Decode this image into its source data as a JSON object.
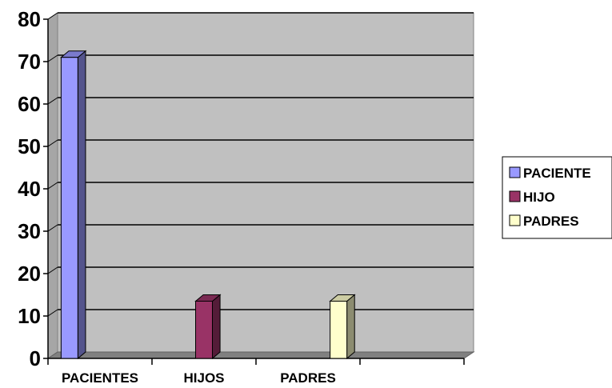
{
  "chart_data": {
    "type": "bar",
    "style": "3d-clustered",
    "categories": [
      "PACIENTES",
      "HIJOS",
      "PADRES"
    ],
    "series": [
      {
        "name": "PACIENTE",
        "color": "#9999ff",
        "values": [
          71,
          0,
          0
        ]
      },
      {
        "name": "HIJO",
        "color": "#993366",
        "values": [
          0,
          13.5,
          0
        ]
      },
      {
        "name": "PADRES",
        "color": "#ffffcc",
        "values": [
          0,
          0,
          13.5
        ]
      }
    ],
    "ylim": [
      0,
      80
    ],
    "yticks": [
      "0",
      "10",
      "20",
      "30",
      "40",
      "50",
      "60",
      "70",
      "80"
    ],
    "title": "",
    "xlabel": "",
    "ylabel": "",
    "grid": true,
    "plot_background": "#c0c0c0",
    "legend_position": "right"
  }
}
